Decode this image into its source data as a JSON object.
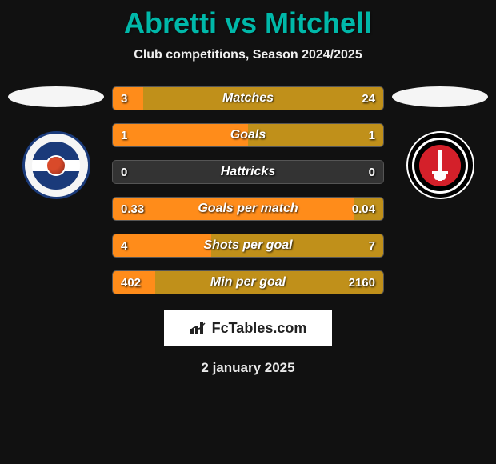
{
  "title": "Abretti vs Mitchell",
  "subtitle": "Club competitions, Season 2024/2025",
  "date": "2 january 2025",
  "brand": "FcTables.com",
  "colors": {
    "background": "#111111",
    "title": "#00b8a9",
    "bar_left": "#ff8c1a",
    "bar_right": "#c0901a",
    "bar_track": "#333333",
    "text": "#ffffff"
  },
  "stats": [
    {
      "label": "Matches",
      "left_text": "3",
      "right_text": "24",
      "left_pct": 11.1,
      "right_pct": 88.9
    },
    {
      "label": "Goals",
      "left_text": "1",
      "right_text": "1",
      "left_pct": 50.0,
      "right_pct": 50.0
    },
    {
      "label": "Hattricks",
      "left_text": "0",
      "right_text": "0",
      "left_pct": 0.0,
      "right_pct": 0.0
    },
    {
      "label": "Goals per match",
      "left_text": "0.33",
      "right_text": "0.04",
      "left_pct": 89.2,
      "right_pct": 10.8
    },
    {
      "label": "Shots per goal",
      "left_text": "4",
      "right_text": "7",
      "left_pct": 36.4,
      "right_pct": 63.6
    },
    {
      "label": "Min per goal",
      "left_text": "402",
      "right_text": "2160",
      "left_pct": 15.7,
      "right_pct": 84.3
    }
  ],
  "crest_left": {
    "name": "Reading",
    "outer": "#f5f5f5",
    "ring": "#1a3a7a",
    "accent": "#d94a2a"
  },
  "crest_right": {
    "name": "Charlton",
    "outer": "#000000",
    "ring": "#ffffff",
    "inner": "#d4202a"
  }
}
